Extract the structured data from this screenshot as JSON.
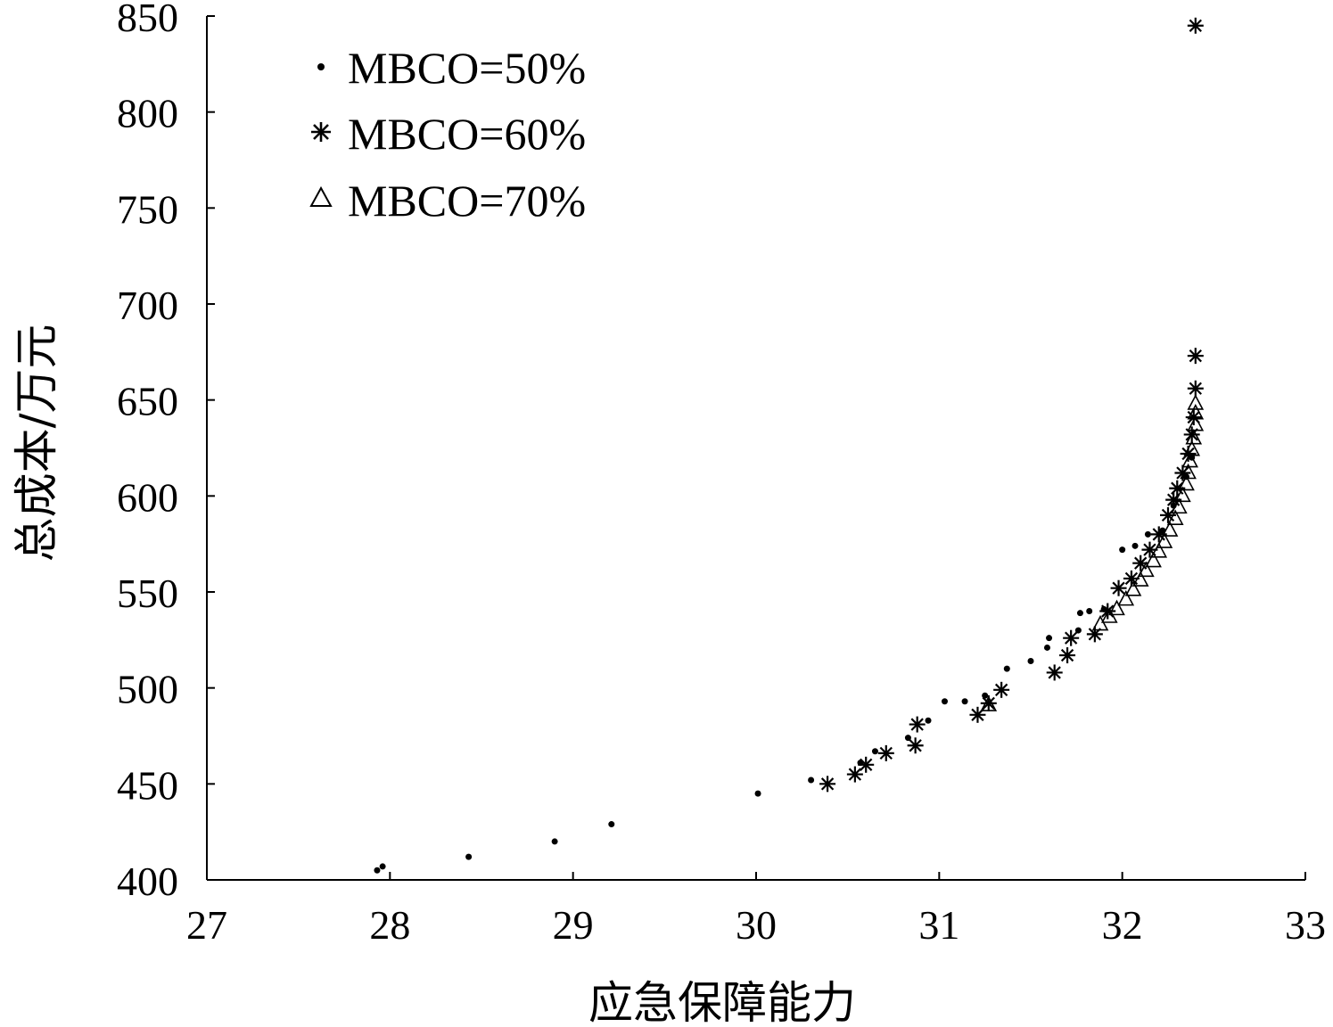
{
  "chart_data": {
    "type": "scatter",
    "title": "",
    "xlabel": "应急保障能力",
    "ylabel": "总成本/万元",
    "xlim": [
      27,
      33
    ],
    "ylim": [
      400,
      850
    ],
    "xticks": [
      27,
      28,
      29,
      30,
      31,
      32,
      33
    ],
    "yticks": [
      400,
      450,
      500,
      550,
      600,
      650,
      700,
      750,
      800,
      850
    ],
    "grid": false,
    "legend_position": "top-left",
    "series": [
      {
        "name": "MBCO=50%",
        "marker": "dot",
        "points": [
          [
            27.93,
            405
          ],
          [
            27.96,
            407
          ],
          [
            28.43,
            412
          ],
          [
            28.9,
            420
          ],
          [
            29.21,
            429
          ],
          [
            30.01,
            445
          ],
          [
            30.3,
            452
          ],
          [
            30.57,
            461
          ],
          [
            30.65,
            467
          ],
          [
            30.83,
            474
          ],
          [
            30.94,
            483
          ],
          [
            31.03,
            493
          ],
          [
            31.14,
            493
          ],
          [
            31.25,
            496
          ],
          [
            31.37,
            510
          ],
          [
            31.5,
            514
          ],
          [
            31.59,
            521
          ],
          [
            31.6,
            526
          ],
          [
            31.76,
            530
          ],
          [
            31.77,
            539
          ],
          [
            31.82,
            540
          ],
          [
            31.9,
            541
          ],
          [
            32.0,
            572
          ],
          [
            32.07,
            574
          ],
          [
            32.14,
            580
          ],
          [
            32.22,
            582
          ],
          [
            32.28,
            595
          ],
          [
            32.35,
            610
          ],
          [
            32.38,
            620
          ]
        ]
      },
      {
        "name": "MBCO=60%",
        "marker": "asterisk",
        "points": [
          [
            30.39,
            450
          ],
          [
            30.54,
            455
          ],
          [
            30.6,
            460
          ],
          [
            30.71,
            466
          ],
          [
            30.87,
            470
          ],
          [
            30.88,
            481
          ],
          [
            31.21,
            486
          ],
          [
            31.27,
            492
          ],
          [
            31.34,
            499
          ],
          [
            31.63,
            508
          ],
          [
            31.7,
            517
          ],
          [
            31.72,
            526
          ],
          [
            31.85,
            528
          ],
          [
            31.92,
            540
          ],
          [
            31.98,
            552
          ],
          [
            32.05,
            557
          ],
          [
            32.1,
            565
          ],
          [
            32.15,
            572
          ],
          [
            32.2,
            580
          ],
          [
            32.25,
            590
          ],
          [
            32.28,
            598
          ],
          [
            32.3,
            604
          ],
          [
            32.33,
            612
          ],
          [
            32.36,
            622
          ],
          [
            32.38,
            632
          ],
          [
            32.39,
            641
          ],
          [
            32.4,
            656
          ],
          [
            32.4,
            673
          ],
          [
            32.4,
            845
          ]
        ]
      },
      {
        "name": "MBCO=70%",
        "marker": "triangle",
        "points": [
          [
            31.88,
            533
          ],
          [
            31.93,
            537
          ],
          [
            31.97,
            541
          ],
          [
            32.02,
            546
          ],
          [
            32.06,
            551
          ],
          [
            32.1,
            556
          ],
          [
            32.13,
            561
          ],
          [
            32.17,
            566
          ],
          [
            32.2,
            571
          ],
          [
            32.23,
            576
          ],
          [
            32.26,
            582
          ],
          [
            32.29,
            588
          ],
          [
            32.31,
            594
          ],
          [
            32.33,
            600
          ],
          [
            32.35,
            606
          ],
          [
            32.36,
            612
          ],
          [
            32.37,
            618
          ],
          [
            32.38,
            624
          ],
          [
            32.39,
            630
          ],
          [
            32.4,
            637
          ],
          [
            32.4,
            643
          ],
          [
            32.4,
            648
          ],
          [
            31.27,
            491
          ]
        ]
      }
    ]
  }
}
